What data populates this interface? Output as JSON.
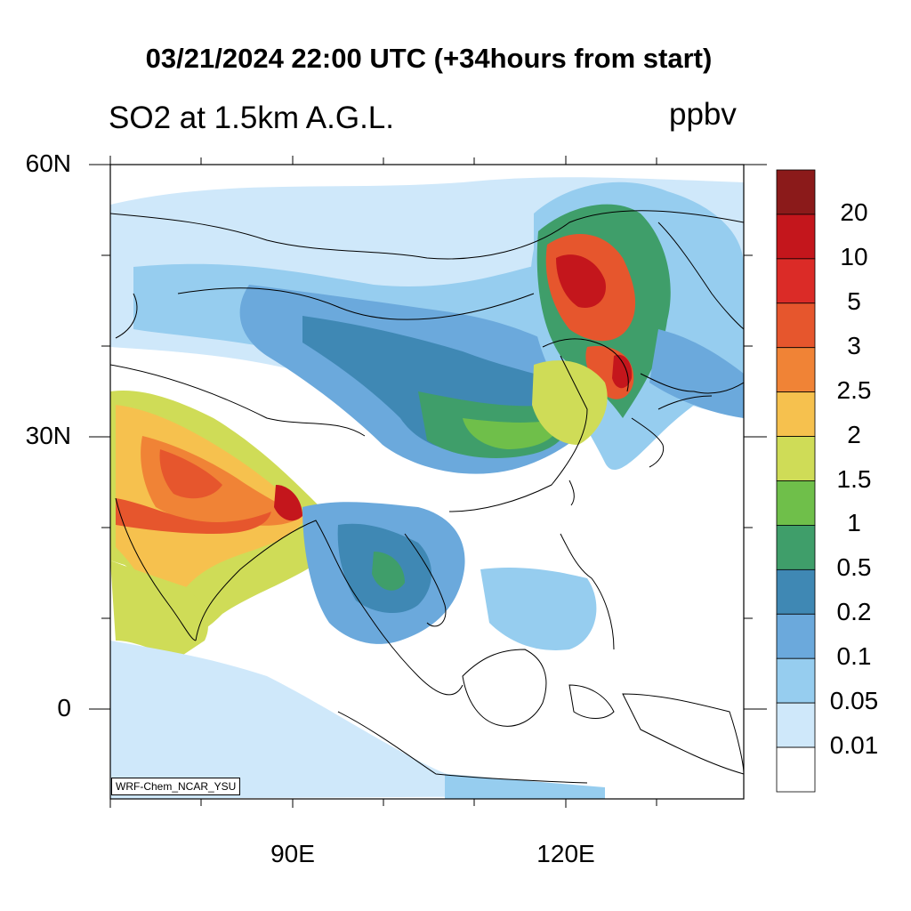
{
  "header": {
    "title": "03/21/2024 22:00 UTC (+34hours from start)",
    "left_string": "SO2 at 1.5km A.G.L.",
    "units": "ppbv"
  },
  "map": {
    "lat_labels": [
      "60N",
      "30N",
      "0"
    ],
    "lon_labels": [
      "90E",
      "120E"
    ],
    "credit": "WRF-Chem_NCAR_YSU"
  },
  "colorbar": {
    "labels": [
      "20",
      "10",
      "5",
      "3",
      "2.5",
      "2",
      "1.5",
      "1",
      "0.5",
      "0.2",
      "0.1",
      "0.05",
      "0.01"
    ],
    "colors": [
      "#8b1a1a",
      "#c4161c",
      "#db2b27",
      "#e6562d",
      "#f08336",
      "#f6c14e",
      "#cfdc57",
      "#6fbf4a",
      "#3f9e6a",
      "#3f88b4",
      "#6ba9dc",
      "#96cdef",
      "#cfe8fa",
      "#ffffff"
    ]
  }
}
